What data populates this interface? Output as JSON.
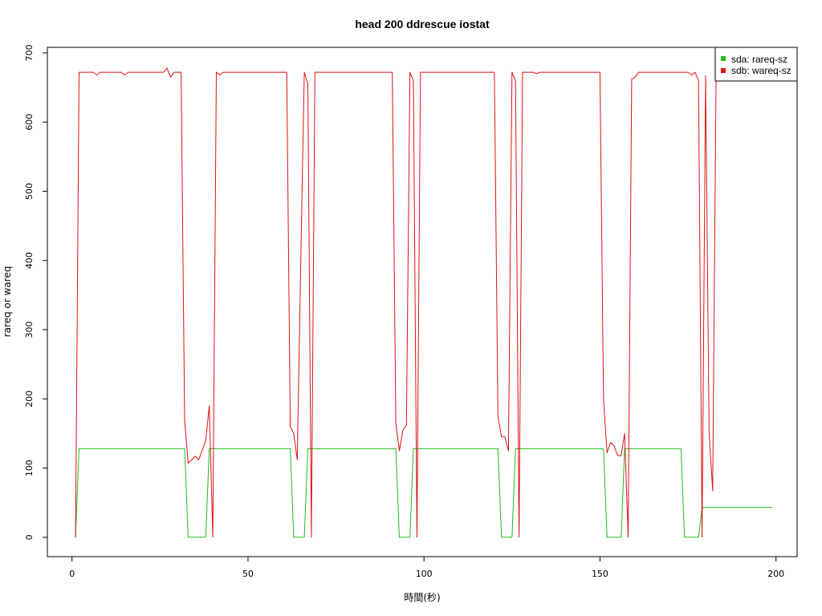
{
  "colors": {
    "sda": "#22bb22",
    "sdb": "#dd1111",
    "axis": "#000000",
    "background": "#ffffff"
  },
  "chart_data": {
    "type": "line",
    "title": "head 200 ddrescue iostat",
    "xlabel": "時間(秒)",
    "ylabel": "rareq or wareq",
    "xlim": [
      -7,
      206
    ],
    "ylim": [
      -28,
      708
    ],
    "xticks": [
      0,
      50,
      100,
      150,
      200
    ],
    "yticks": [
      0,
      100,
      200,
      300,
      400,
      500,
      600,
      700
    ],
    "grid": false,
    "legend_position": "top-right",
    "series": [
      {
        "name": "sda: rareq-sz",
        "color": "#22bb22",
        "points": [
          [
            1,
            0
          ],
          [
            2,
            128
          ],
          [
            32,
            128
          ],
          [
            33,
            0
          ],
          [
            38,
            0
          ],
          [
            39,
            128
          ],
          [
            62,
            128
          ],
          [
            63,
            0
          ],
          [
            66,
            0
          ],
          [
            67,
            128
          ],
          [
            92,
            128
          ],
          [
            93,
            0
          ],
          [
            96,
            0
          ],
          [
            97,
            128
          ],
          [
            121,
            128
          ],
          [
            122,
            0
          ],
          [
            125,
            0
          ],
          [
            126,
            128
          ],
          [
            151,
            128
          ],
          [
            152,
            0
          ],
          [
            156,
            0
          ],
          [
            157,
            128
          ],
          [
            173,
            128
          ],
          [
            174,
            0
          ],
          [
            178,
            0
          ],
          [
            179,
            43
          ],
          [
            199,
            43
          ]
        ]
      },
      {
        "name": "sdb: wareq-sz",
        "color": "#dd1111",
        "points": [
          [
            1,
            0
          ],
          [
            2,
            672
          ],
          [
            6,
            672
          ],
          [
            7,
            668
          ],
          [
            8,
            672
          ],
          [
            14,
            672
          ],
          [
            15,
            668
          ],
          [
            16,
            672
          ],
          [
            26,
            672
          ],
          [
            27,
            678
          ],
          [
            28,
            665
          ],
          [
            29,
            672
          ],
          [
            31,
            672
          ],
          [
            32,
            170
          ],
          [
            33,
            107
          ],
          [
            35,
            117
          ],
          [
            36,
            112
          ],
          [
            38,
            140
          ],
          [
            39,
            190
          ],
          [
            40,
            0
          ],
          [
            41,
            672
          ],
          [
            42,
            668
          ],
          [
            43,
            672
          ],
          [
            61,
            672
          ],
          [
            62,
            160
          ],
          [
            63,
            150
          ],
          [
            64,
            112
          ],
          [
            65,
            400
          ],
          [
            66,
            672
          ],
          [
            67,
            655
          ],
          [
            68,
            0
          ],
          [
            69,
            672
          ],
          [
            91,
            672
          ],
          [
            92,
            165
          ],
          [
            93,
            125
          ],
          [
            94,
            155
          ],
          [
            95,
            162
          ],
          [
            96,
            672
          ],
          [
            97,
            660
          ],
          [
            98,
            0
          ],
          [
            99,
            672
          ],
          [
            120,
            672
          ],
          [
            121,
            175
          ],
          [
            122,
            145
          ],
          [
            123,
            145
          ],
          [
            124,
            125
          ],
          [
            125,
            672
          ],
          [
            126,
            660
          ],
          [
            127,
            0
          ],
          [
            128,
            672
          ],
          [
            131,
            672
          ],
          [
            132,
            670
          ],
          [
            133,
            672
          ],
          [
            150,
            672
          ],
          [
            151,
            200
          ],
          [
            152,
            122
          ],
          [
            153,
            137
          ],
          [
            154,
            132
          ],
          [
            155,
            118
          ],
          [
            156,
            118
          ],
          [
            157,
            150
          ],
          [
            158,
            0
          ],
          [
            159,
            662
          ],
          [
            160,
            665
          ],
          [
            161,
            672
          ],
          [
            175,
            672
          ],
          [
            176,
            668
          ],
          [
            177,
            672
          ],
          [
            178,
            660
          ],
          [
            179,
            0
          ],
          [
            180,
            667
          ],
          [
            181,
            150
          ],
          [
            182,
            67
          ],
          [
            183,
            672
          ]
        ]
      }
    ]
  }
}
